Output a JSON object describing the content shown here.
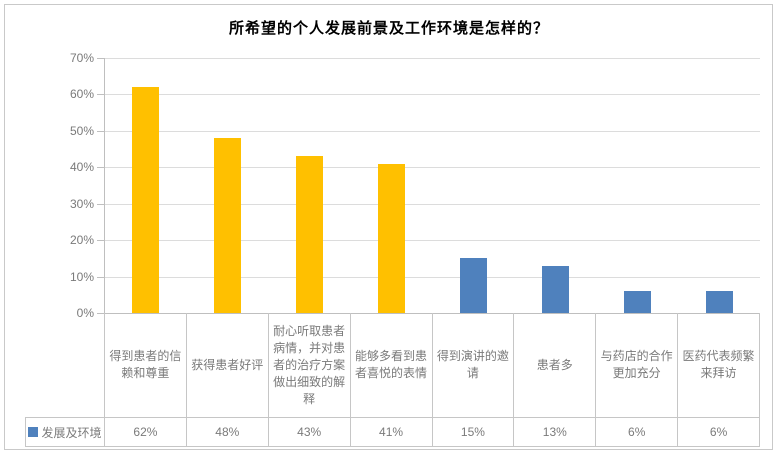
{
  "chart_data": {
    "type": "bar",
    "title": "所希望的个人发展前景及工作环境是怎样的？",
    "categories": [
      "得到患者的信赖和尊重",
      "获得患者好评",
      "耐心听取患者病情，并对患者的治疗方案做出细致的解释",
      "能够多看到患者喜悦的表情",
      "得到演讲的邀请",
      "患者多",
      "与药店的合作更加充分",
      "医药代表频繁来拜访"
    ],
    "series": [
      {
        "name": "发展及环境",
        "color": "#4F81BD",
        "values": [
          62,
          48,
          43,
          41,
          15,
          13,
          6,
          6
        ]
      }
    ],
    "value_labels": [
      "62%",
      "48%",
      "43%",
      "41%",
      "15%",
      "13%",
      "6%",
      "6%"
    ],
    "bar_colors": [
      "#FFC000",
      "#FFC000",
      "#FFC000",
      "#FFC000",
      "#4F81BD",
      "#4F81BD",
      "#4F81BD",
      "#4F81BD"
    ],
    "y_ticks": [
      "70%",
      "60%",
      "50%",
      "40%",
      "30%",
      "20%",
      "10%",
      "0%"
    ],
    "ylim": [
      0,
      70
    ],
    "grid": true,
    "legend_position": "bottom-table-left",
    "xlabel": "",
    "ylabel": ""
  },
  "colors": {
    "gold_bar": "#FFC000",
    "blue_bar": "#4F81BD",
    "gridline": "#DCDCDC",
    "axis": "#BFBFBF",
    "table_border": "#C6C6C6",
    "label_text": "#7A7A7A",
    "title_text": "#000000",
    "frame_border": "#C9C9C9"
  }
}
